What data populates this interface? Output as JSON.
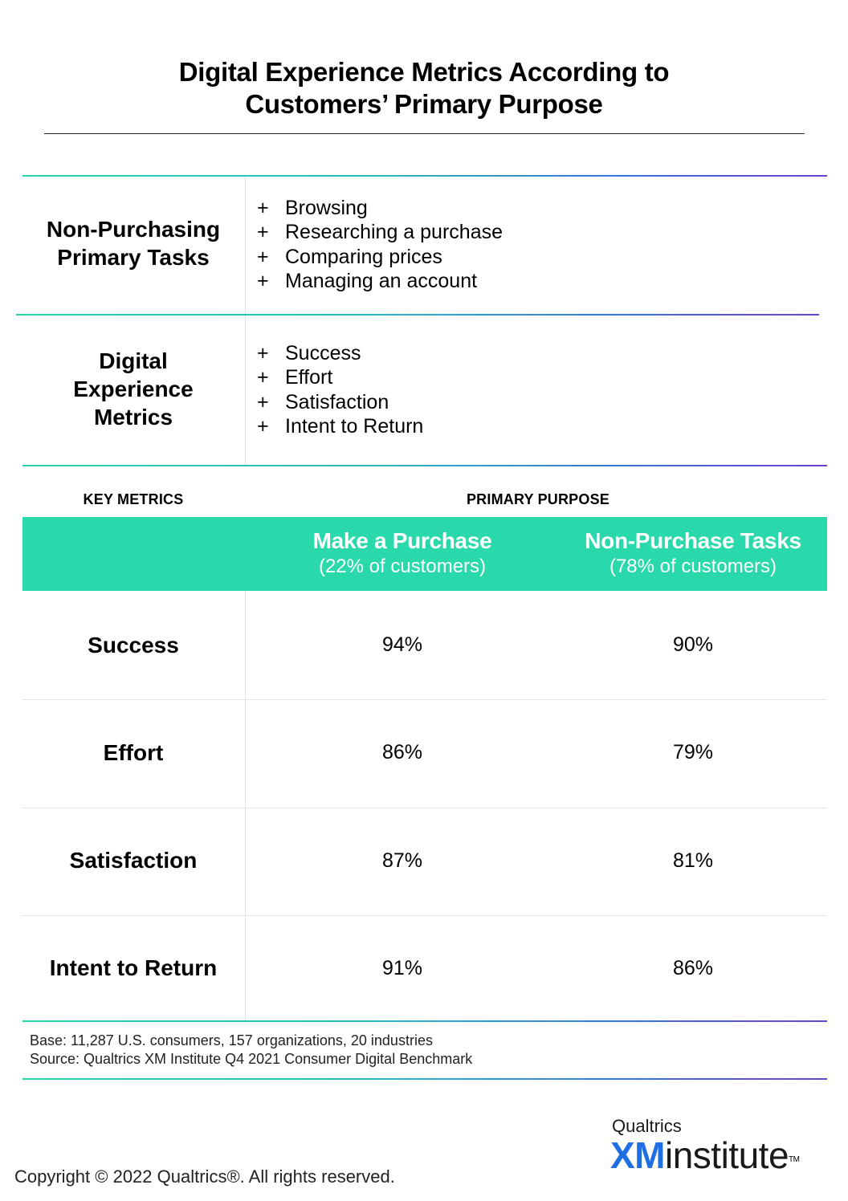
{
  "title_line1": "Digital Experience Metrics According to",
  "title_line2": "Customers’ Primary Purpose",
  "definitions": [
    {
      "label_lines": [
        "Non-Purchasing",
        "Primary Tasks"
      ],
      "bullet_symbol": "+",
      "items": [
        "Browsing",
        "Researching a purchase",
        "Comparing prices",
        "Managing an account"
      ]
    },
    {
      "label_lines": [
        "Digital",
        "Experience",
        "Metrics"
      ],
      "bullet_symbol": "+",
      "items": [
        "Success",
        "Effort",
        "Satisfaction",
        "Intent to Return"
      ]
    }
  ],
  "table": {
    "key_metrics_header": "KEY METRICS",
    "primary_purpose_header": "PRIMARY PURPOSE",
    "columns": [
      {
        "name": "Make a Purchase",
        "share": "(22% of customers)"
      },
      {
        "name": "Non-Purchase Tasks",
        "share": "(78% of customers)"
      }
    ],
    "rows": [
      {
        "metric": "Success",
        "purchase": "94%",
        "non_purchase": "90%"
      },
      {
        "metric": "Effort",
        "purchase": "86%",
        "non_purchase": "79%"
      },
      {
        "metric": "Satisfaction",
        "purchase": "87%",
        "non_purchase": "81%"
      },
      {
        "metric": "Intent to Return",
        "purchase": "91%",
        "non_purchase": "86%"
      }
    ]
  },
  "footnote": {
    "base": "Base: 11,287 U.S. consumers, 157 organizations, 20 industries",
    "source": "Source: Qualtrics XM Institute Q4 2021 Consumer Digital Benchmark"
  },
  "copyright": "Copyright © 2022 Qualtrics®.  All rights reserved.",
  "logo": {
    "company": "Qualtrics",
    "xm": "XM",
    "institute": "institute",
    "tm": "TM",
    "xm_color": "#1f6fe3"
  },
  "colors": {
    "band": "#2ad9ab",
    "gradient_start": "#2ad3ad",
    "gradient_end": "#6a3fd6"
  }
}
